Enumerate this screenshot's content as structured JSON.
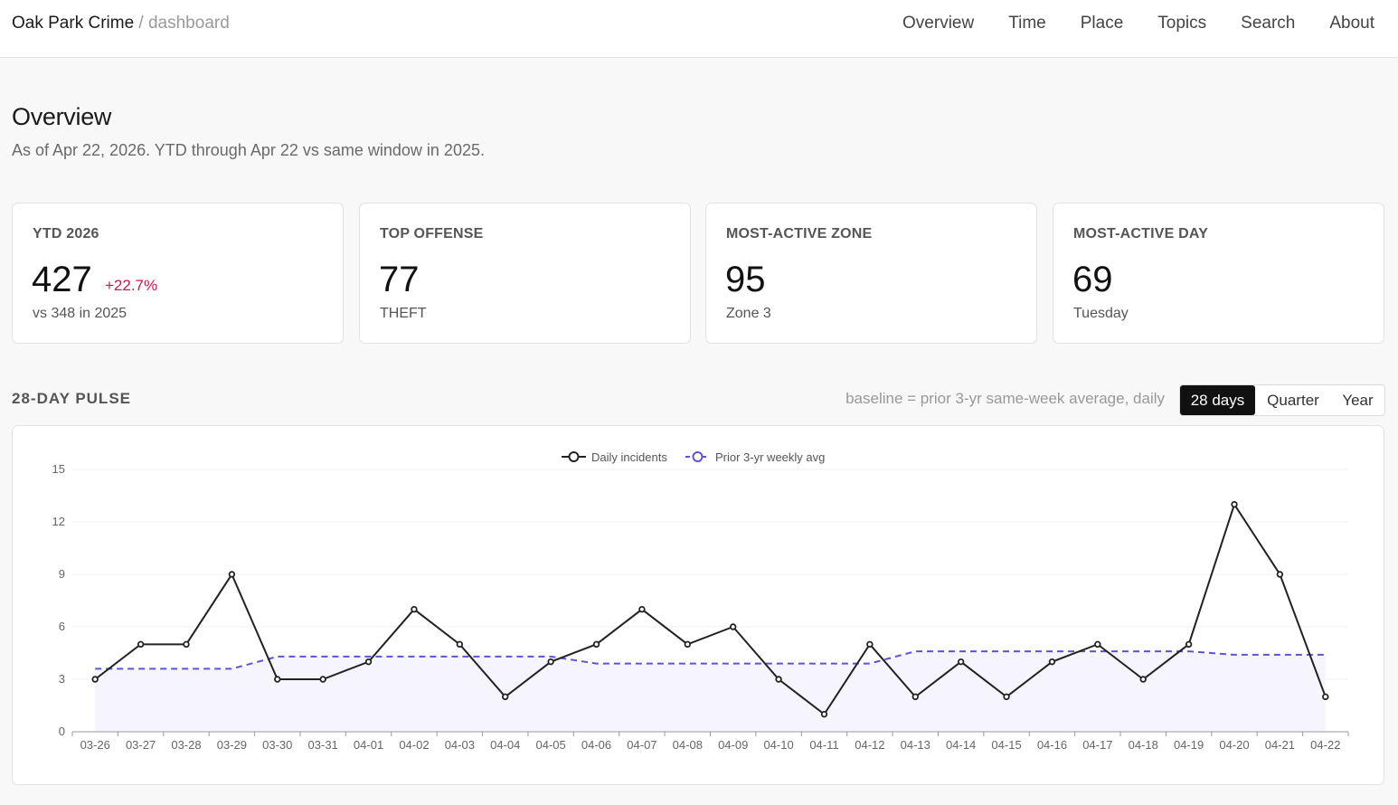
{
  "header": {
    "brand": "Oak Park Crime",
    "separator": " / ",
    "section": "dashboard",
    "nav": [
      "Overview",
      "Time",
      "Place",
      "Topics",
      "Search",
      "About"
    ]
  },
  "page": {
    "title": "Overview",
    "subtitle": "As of Apr 22, 2026. YTD through Apr 22 vs same window in 2025."
  },
  "cards": [
    {
      "label": "YTD 2026",
      "value": "427",
      "delta": "+22.7%",
      "note": "vs 348 in 2025"
    },
    {
      "label": "TOP OFFENSE",
      "value": "77",
      "note": "THEFT"
    },
    {
      "label": "MOST-ACTIVE ZONE",
      "value": "95",
      "note": "Zone 3"
    },
    {
      "label": "MOST-ACTIVE DAY",
      "value": "69",
      "note": "Tuesday"
    }
  ],
  "pulse": {
    "title": "28-DAY PULSE",
    "baseline_note": "baseline = prior 3-yr same-week average, daily",
    "ranges": [
      "28 days",
      "Quarter",
      "Year"
    ],
    "active_range": "28 days"
  },
  "colors": {
    "accent_series": "#222222",
    "baseline_series": "#5b55d6",
    "delta_up": "#d0164b"
  },
  "chart_data": {
    "type": "line",
    "categories": [
      "03-26",
      "03-27",
      "03-28",
      "03-29",
      "03-30",
      "03-31",
      "04-01",
      "04-02",
      "04-03",
      "04-04",
      "04-05",
      "04-06",
      "04-07",
      "04-08",
      "04-09",
      "04-10",
      "04-11",
      "04-12",
      "04-13",
      "04-14",
      "04-15",
      "04-16",
      "04-17",
      "04-18",
      "04-19",
      "04-20",
      "04-21",
      "04-22"
    ],
    "series": [
      {
        "name": "Daily incidents",
        "values": [
          3,
          5,
          5,
          9,
          3,
          3,
          4,
          7,
          5,
          2,
          4,
          5,
          7,
          5,
          6,
          3,
          1,
          5,
          2,
          4,
          2,
          4,
          5,
          3,
          5,
          13,
          9,
          2
        ]
      },
      {
        "name": "Prior 3-yr weekly avg",
        "values": [
          3.6,
          3.6,
          3.6,
          3.6,
          4.3,
          4.3,
          4.3,
          4.3,
          4.3,
          4.3,
          4.3,
          3.9,
          3.9,
          3.9,
          3.9,
          3.9,
          3.9,
          3.9,
          4.6,
          4.6,
          4.6,
          4.6,
          4.6,
          4.6,
          4.6,
          4.4,
          4.4,
          4.4
        ]
      }
    ],
    "yticks": [
      0,
      3,
      6,
      9,
      12,
      15
    ],
    "ylim": [
      0,
      15
    ],
    "legend": "top-center",
    "grid": true
  }
}
